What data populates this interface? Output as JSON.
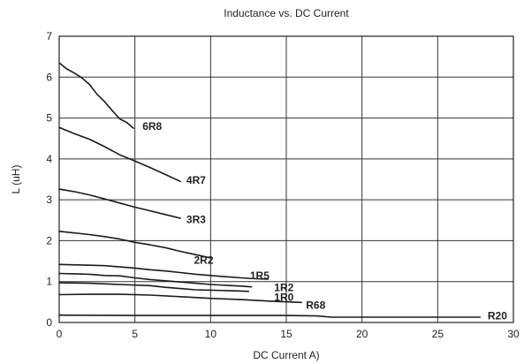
{
  "chart_data": {
    "type": "line",
    "title": "Inductance vs. DC Current",
    "xlabel": "DC Current A)",
    "ylabel": "L (uH)",
    "xlim": [
      0,
      30
    ],
    "ylim": [
      0,
      7
    ],
    "xticks": [
      0,
      5,
      10,
      15,
      20,
      25,
      30
    ],
    "yticks": [
      0,
      1,
      2,
      3,
      4,
      5,
      6,
      7
    ],
    "grid": true,
    "series": [
      {
        "name": "6R8",
        "label_at": [
          5.5,
          4.8
        ],
        "x": [
          0,
          0.5,
          1,
          1.5,
          2,
          2.5,
          3,
          3.5,
          4,
          4.5,
          4.9
        ],
        "y": [
          6.35,
          6.2,
          6.1,
          5.98,
          5.82,
          5.58,
          5.4,
          5.18,
          4.98,
          4.88,
          4.75
        ]
      },
      {
        "name": "4R7",
        "label_at": [
          8.4,
          3.48
        ],
        "x": [
          0,
          1,
          2,
          3,
          4,
          5,
          6,
          7,
          8
        ],
        "y": [
          4.77,
          4.62,
          4.48,
          4.3,
          4.1,
          3.95,
          3.79,
          3.62,
          3.45
        ]
      },
      {
        "name": "3R3",
        "label_at": [
          8.4,
          2.52
        ],
        "x": [
          0,
          1,
          2,
          3,
          4,
          5,
          6,
          7,
          8
        ],
        "y": [
          3.26,
          3.2,
          3.12,
          3.02,
          2.92,
          2.82,
          2.73,
          2.64,
          2.55
        ]
      },
      {
        "name": "2R2",
        "label_at": [
          8.9,
          1.52
        ],
        "x": [
          0,
          2,
          3,
          4,
          5,
          6,
          7,
          8,
          9,
          10
        ],
        "y": [
          2.23,
          2.15,
          2.1,
          2.04,
          1.96,
          1.9,
          1.83,
          1.74,
          1.66,
          1.58
        ]
      },
      {
        "name": "1R5",
        "label_at": [
          12.6,
          1.14
        ],
        "x": [
          0,
          2,
          3,
          4,
          5,
          6,
          7,
          8,
          9,
          10,
          11,
          12,
          13,
          13.8
        ],
        "y": [
          1.42,
          1.4,
          1.39,
          1.36,
          1.33,
          1.29,
          1.26,
          1.22,
          1.18,
          1.15,
          1.12,
          1.09,
          1.07,
          1.06
        ]
      },
      {
        "name": "1R2",
        "label_at": [
          14.2,
          0.85
        ],
        "x": [
          0,
          1,
          2,
          3,
          4,
          5,
          6,
          7,
          8,
          9,
          10,
          11,
          12,
          12.7
        ],
        "y": [
          1.2,
          1.19,
          1.18,
          1.15,
          1.14,
          1.09,
          1.05,
          1.02,
          0.99,
          0.96,
          0.93,
          0.91,
          0.89,
          0.87
        ]
      },
      {
        "name": "1R0",
        "label_at": [
          14.2,
          0.62
        ],
        "x": [
          0,
          2,
          4,
          6,
          7,
          8,
          9,
          10,
          11,
          12,
          12.5
        ],
        "y": [
          0.97,
          0.96,
          0.93,
          0.9,
          0.86,
          0.83,
          0.8,
          0.79,
          0.78,
          0.77,
          0.76
        ]
      },
      {
        "name": "R68",
        "label_at": [
          16.3,
          0.42
        ],
        "x": [
          0,
          2,
          4,
          6,
          8,
          10,
          12,
          14,
          16
        ],
        "y": [
          0.68,
          0.69,
          0.69,
          0.67,
          0.63,
          0.59,
          0.56,
          0.52,
          0.49
        ]
      },
      {
        "name": "R20",
        "label_at": [
          28.3,
          0.16
        ],
        "x": [
          0,
          5,
          10,
          15,
          17,
          18,
          20,
          25,
          27.8
        ],
        "y": [
          0.18,
          0.17,
          0.17,
          0.17,
          0.16,
          0.13,
          0.13,
          0.13,
          0.13
        ]
      }
    ]
  }
}
